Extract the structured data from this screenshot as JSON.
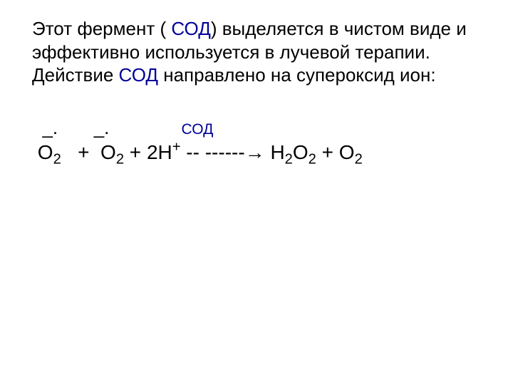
{
  "paragraph": {
    "part1": " Этот фермент ( ",
    "sod1": "СОД",
    "part2": ") выделяется в чистом виде и эффективно используется в лучевой терапии. Действие ",
    "sod2": "СОД",
    "part3": " направлено на супероксид ион:"
  },
  "equation": {
    "row1_lead": "  _.       _.              ",
    "row1_sod": "СОД",
    "row2_pre": " О",
    "row2_sub1": "2",
    "row2_mid1": "   +  О",
    "row2_sub2": "2",
    "row2_mid2": " + 2Н",
    "row2_sup1": "+",
    "row2_arrow": " -- ------→ Н",
    "row2_sub3": "2",
    "row2_o1": "О",
    "row2_sub4": "2",
    "row2_plus": " + О",
    "row2_sub5": "2"
  },
  "colors": {
    "highlight": "#000099",
    "text": "#000000",
    "background": "#ffffff"
  }
}
